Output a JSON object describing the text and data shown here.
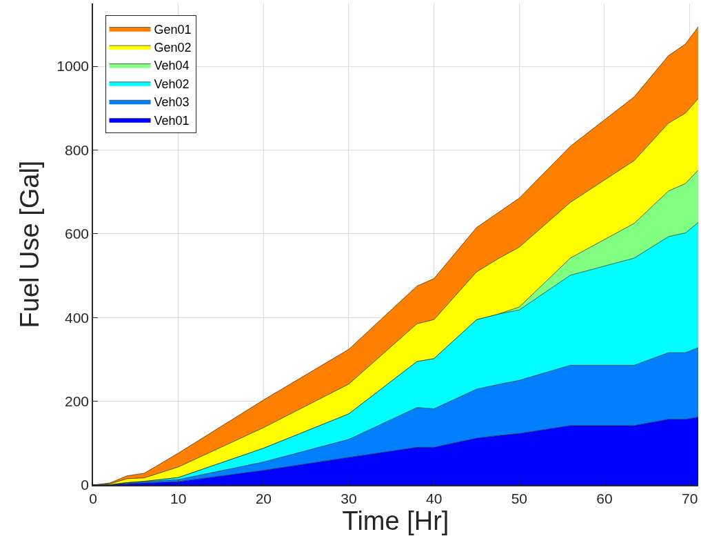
{
  "chart_data": {
    "type": "area",
    "stacked": true,
    "xlabel": "Time [Hr]",
    "ylabel": "Fuel Use [Gal]",
    "x": [
      0,
      2,
      4,
      6,
      10,
      20,
      30,
      38,
      40,
      45,
      47.5,
      50,
      56,
      63.5,
      67.5,
      69.5,
      71
    ],
    "series": [
      {
        "name": "Veh01",
        "color": "#0000ff",
        "values": [
          0,
          1,
          3,
          5,
          8,
          35,
          66,
          90,
          90,
          112,
          118,
          123,
          142,
          142,
          157,
          157,
          162
        ]
      },
      {
        "name": "Veh03",
        "color": "#0080ff",
        "values": [
          0,
          0,
          2,
          3,
          5,
          20,
          43,
          95,
          92,
          117,
          122,
          127,
          144,
          144,
          159,
          159,
          166
        ]
      },
      {
        "name": "Veh02",
        "color": "#00ffff",
        "values": [
          0,
          0,
          1,
          1,
          5,
          33,
          61,
          110,
          120,
          166,
          168,
          168,
          215,
          256,
          277,
          286,
          299
        ]
      },
      {
        "name": "Veh04",
        "color": "#80ff80",
        "values": [
          0,
          0,
          0,
          0,
          0,
          0,
          0,
          0,
          0,
          0,
          0,
          7,
          41,
          83,
          109,
          118,
          125
        ]
      },
      {
        "name": "Gen02",
        "color": "#ffff00",
        "values": [
          0,
          2,
          9,
          8,
          25,
          49,
          71,
          90,
          93,
          114,
          132,
          143,
          133,
          150,
          162,
          168,
          171
        ]
      },
      {
        "name": "Gen01",
        "color": "#ff8000",
        "values": [
          0,
          2,
          7,
          11,
          33,
          66,
          83,
          90,
          98,
          106,
          110,
          117,
          134,
          152,
          161,
          165,
          171
        ]
      }
    ],
    "xlim": [
      0,
      71
    ],
    "xticks": [
      0,
      10,
      20,
      30,
      40,
      50,
      60,
      70
    ],
    "ylim": [
      0,
      1150
    ],
    "yticks": [
      0,
      200,
      400,
      600,
      800,
      1000
    ],
    "grid": true,
    "legend": "top left"
  }
}
